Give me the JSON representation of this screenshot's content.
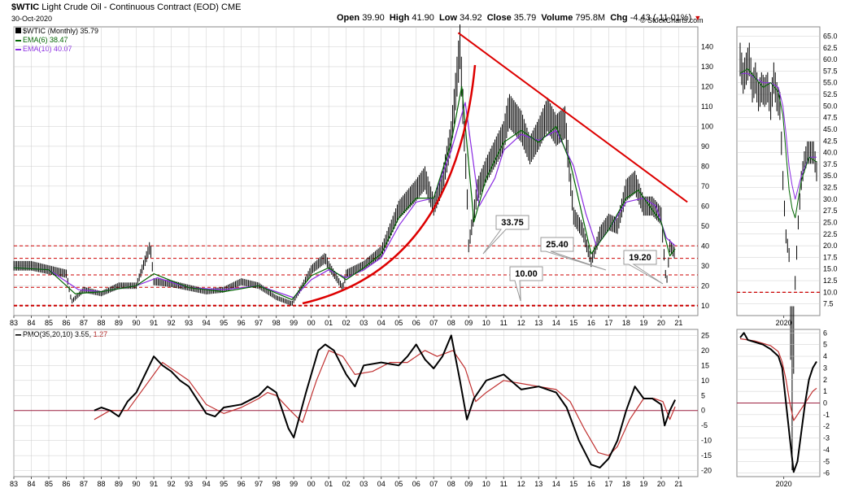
{
  "header": {
    "symbol": "$WTIC",
    "name": "Light Crude Oil - Continuous Contract (EOD)",
    "exchange": "CME",
    "date": "30-Oct-2020",
    "watermark": "© StockCharts.com",
    "ohlc": [
      {
        "label": "Open",
        "value": "39.90"
      },
      {
        "label": "High",
        "value": "41.90"
      },
      {
        "label": "Low",
        "value": "34.92"
      },
      {
        "label": "Close",
        "value": "35.79"
      },
      {
        "label": "Volume",
        "value": "795.8M"
      },
      {
        "label": "Chg",
        "value": "-4.43 (-11.01%)"
      }
    ],
    "legend": [
      {
        "text": "$WTIC (Monthly) 35.79",
        "color": "#000000"
      },
      {
        "text": "EMA(6) 38.47",
        "color": "#006400"
      },
      {
        "text": "EMA(10) 40.07",
        "color": "#8a2be2"
      }
    ],
    "pmo_label": "PMO(35,20,10)",
    "pmo_value": "3.55",
    "pmo_signal_value": "1.27",
    "pmo_signal_color": "#b22222"
  },
  "colors": {
    "price": "#000000",
    "ema6": "#006400",
    "ema10": "#8a2be2",
    "trend": "#dd0000",
    "support": "#cc0000",
    "grid": "#cccccc",
    "pmo": "#000000",
    "pmo_signal": "#c03030",
    "zero_line": "#9c2040"
  },
  "annotations": [
    "33.75",
    "25.40",
    "19.20",
    "10.00"
  ],
  "chart_data": [
    {
      "type": "line",
      "title": "$WTIC (Monthly)",
      "x_ticks": [
        "83",
        "84",
        "85",
        "86",
        "87",
        "88",
        "89",
        "90",
        "91",
        "92",
        "93",
        "94",
        "95",
        "96",
        "97",
        "98",
        "99",
        "00",
        "01",
        "02",
        "03",
        "04",
        "05",
        "06",
        "07",
        "08",
        "09",
        "10",
        "11",
        "12",
        "13",
        "14",
        "15",
        "16",
        "17",
        "18",
        "19",
        "20",
        "21"
      ],
      "y_ticks": [
        10,
        20,
        30,
        40,
        50,
        60,
        70,
        80,
        90,
        100,
        110,
        120,
        130,
        140
      ],
      "ylim": [
        5,
        150
      ],
      "series": [
        {
          "name": "$WTIC",
          "x": [
            1983,
            1984,
            1985,
            1986,
            1986.3,
            1987,
            1988,
            1989,
            1990,
            1990.8,
            1991,
            1992,
            1993,
            1994,
            1995,
            1996,
            1997,
            1998,
            1998.9,
            1999.5,
            2000,
            2000.8,
            2001,
            2001.8,
            2002,
            2003,
            2004,
            2005,
            2006,
            2006.5,
            2007,
            2007.5,
            2008,
            2008.5,
            2008.9,
            2009,
            2009.5,
            2010,
            2011,
            2011.3,
            2012,
            2012.5,
            2013,
            2013.5,
            2014,
            2014.5,
            2015,
            2015.5,
            2016,
            2016.5,
            2017,
            2017.5,
            2018,
            2018.5,
            2019,
            2019.5,
            2020,
            2020.3,
            2020.5,
            2020.8
          ],
          "values": [
            30,
            30,
            28,
            26,
            12,
            18,
            16,
            20,
            20,
            40,
            22,
            21,
            19,
            17,
            18,
            22,
            20,
            14,
            11,
            20,
            28,
            34,
            30,
            19,
            26,
            30,
            37,
            58,
            68,
            74,
            60,
            72,
            95,
            140,
            68,
            40,
            68,
            78,
            95,
            108,
            100,
            88,
            96,
            106,
            98,
            102,
            55,
            48,
            32,
            46,
            52,
            50,
            68,
            72,
            60,
            60,
            55,
            20,
            40,
            36
          ]
        },
        {
          "name": "EMA(6)",
          "x": [
            1983,
            1985,
            1986.5,
            1988,
            1990,
            1991,
            1993,
            1995,
            1997,
            1998.9,
            2000,
            2001,
            2002,
            2003,
            2004,
            2005,
            2006,
            2007,
            2008,
            2008.6,
            2009.3,
            2010,
            2011,
            2012,
            2013,
            2014,
            2014.8,
            2015.5,
            2016,
            2017,
            2018,
            2018.7,
            2019.5,
            2020,
            2020.5,
            2020.8
          ],
          "values": [
            29,
            28,
            16,
            17,
            20,
            26,
            19,
            17,
            20,
            13,
            25,
            29,
            23,
            29,
            36,
            54,
            64,
            64,
            92,
            120,
            52,
            74,
            92,
            98,
            92,
            100,
            82,
            55,
            36,
            48,
            64,
            68,
            58,
            52,
            35,
            38.47
          ]
        },
        {
          "name": "EMA(10)",
          "x": [
            1983,
            1985,
            1986.7,
            1988,
            1990,
            1991.2,
            1993,
            1995,
            1997,
            1999,
            2000,
            2001,
            2002,
            2003,
            2004,
            2005,
            2006,
            2007,
            2008,
            2008.8,
            2009.6,
            2010.5,
            2011,
            2012,
            2013,
            2014,
            2015,
            2015.7,
            2016.3,
            2017,
            2018,
            2019,
            2019.7,
            2020.3,
            2020.8
          ],
          "values": [
            29,
            28,
            18,
            17,
            20,
            24,
            19,
            18,
            20,
            14,
            23,
            28,
            24,
            28,
            34,
            50,
            62,
            64,
            88,
            112,
            60,
            74,
            88,
            96,
            93,
            98,
            80,
            56,
            40,
            48,
            62,
            64,
            60,
            44,
            40.07
          ]
        }
      ],
      "support_levels": [
        40,
        33.75,
        25.4,
        19.2,
        10.0
      ],
      "trend_line": {
        "x": [
          2008.4,
          2021.5
        ],
        "y": [
          147,
          62
        ]
      }
    },
    {
      "type": "line",
      "title": "$WTIC (Daily inset)",
      "x_ticks": [
        "2020"
      ],
      "y_ticks": [
        7.5,
        10.0,
        12.5,
        15.0,
        17.5,
        20.0,
        22.5,
        25.0,
        27.5,
        30.0,
        32.5,
        35.0,
        37.5,
        40.0,
        42.5,
        45.0,
        47.5,
        50.0,
        52.5,
        55.0,
        57.5,
        60.0,
        62.5,
        65.0
      ],
      "ylim": [
        5,
        67
      ],
      "series": [
        {
          "name": "$WTIC",
          "x": [
            0,
            4,
            8,
            12,
            16,
            20,
            24,
            28,
            32,
            36,
            40,
            44,
            48,
            52,
            56,
            60,
            64,
            68,
            72,
            76,
            80,
            84,
            88,
            92,
            96,
            100
          ],
          "values": [
            60,
            56,
            58,
            60,
            54,
            56,
            52,
            54,
            53,
            54,
            50,
            56,
            52,
            50,
            34,
            22,
            18,
            -30,
            12,
            25,
            34,
            38,
            40,
            40,
            40,
            36
          ]
        },
        {
          "name": "EMA(6)",
          "x": [
            0,
            10,
            20,
            30,
            40,
            50,
            56,
            60,
            64,
            68,
            72,
            80,
            90,
            100
          ],
          "values": [
            57,
            58,
            56,
            54,
            55,
            53,
            48,
            40,
            32,
            28,
            26,
            34,
            39,
            38
          ]
        },
        {
          "name": "EMA(10)",
          "x": [
            0,
            10,
            20,
            30,
            40,
            50,
            56,
            60,
            64,
            68,
            72,
            80,
            90,
            100
          ],
          "values": [
            57,
            57,
            56,
            55,
            55,
            54,
            50,
            44,
            37,
            33,
            30,
            35,
            39,
            39
          ]
        }
      ]
    },
    {
      "type": "line",
      "title": "PMO(35,20,10)",
      "x_ticks": [
        "83",
        "84",
        "85",
        "86",
        "87",
        "88",
        "89",
        "90",
        "91",
        "92",
        "93",
        "94",
        "95",
        "96",
        "97",
        "98",
        "99",
        "00",
        "01",
        "02",
        "03",
        "04",
        "05",
        "06",
        "07",
        "08",
        "09",
        "10",
        "11",
        "12",
        "13",
        "14",
        "15",
        "16",
        "17",
        "18",
        "19",
        "20",
        "21"
      ],
      "y_ticks": [
        -20,
        -15,
        -10,
        -5,
        0,
        5,
        10,
        15,
        20,
        25
      ],
      "ylim": [
        -22,
        27
      ],
      "series": [
        {
          "name": "PMO",
          "x": [
            1987.6,
            1988,
            1988.5,
            1989,
            1989.5,
            1990,
            1990.5,
            1991,
            1991.5,
            1992,
            1992.5,
            1993,
            1994,
            1994.5,
            1995,
            1996,
            1997,
            1997.5,
            1998,
            1998.7,
            1999,
            1999.7,
            2000.4,
            2000.8,
            2001.3,
            2002,
            2002.5,
            2003,
            2004,
            2005,
            2005.5,
            2006,
            2006.5,
            2007,
            2007.5,
            2008,
            2008.5,
            2008.9,
            2009.3,
            2010,
            2011,
            2012,
            2013,
            2014,
            2014.6,
            2015.3,
            2016,
            2016.5,
            2017,
            2017.5,
            2018,
            2018.5,
            2019,
            2019.5,
            2020,
            2020.2,
            2020.5,
            2020.8
          ],
          "values": [
            0,
            1,
            0,
            -2,
            3,
            6,
            12,
            18,
            15,
            13,
            10,
            8,
            -1,
            -2,
            1,
            2,
            5,
            8,
            6,
            -6,
            -9,
            6,
            20,
            22,
            20,
            12,
            8,
            15,
            16,
            15,
            18,
            22,
            17,
            14,
            18,
            25,
            10,
            -3,
            4,
            10,
            12,
            7,
            8,
            6,
            1,
            -10,
            -18,
            -19,
            -16,
            -10,
            0,
            8,
            4,
            4,
            2,
            -5,
            0,
            3.55
          ]
        },
        {
          "name": "Signal",
          "x": [
            1987.6,
            1988.5,
            1989.5,
            1990.5,
            1991.5,
            1992.5,
            1993,
            1994,
            1995,
            1996,
            1997,
            1997.5,
            1998,
            1998.8,
            1999.5,
            2000.3,
            2001,
            2001.8,
            2002.5,
            2003.5,
            2004.5,
            2005.5,
            2006.5,
            2007.2,
            2008.1,
            2008.8,
            2009.4,
            2010,
            2011,
            2012,
            2013,
            2014,
            2014.8,
            2015.6,
            2016.4,
            2017,
            2017.5,
            2018.2,
            2019,
            2019.6,
            2020.1,
            2020.5,
            2020.8
          ],
          "values": [
            -3,
            0,
            0,
            8,
            16,
            12,
            10,
            2,
            -1,
            1,
            4,
            6,
            5,
            0,
            -4,
            10,
            20,
            18,
            12,
            13,
            16,
            16,
            20,
            18,
            20,
            14,
            3,
            6,
            10,
            9,
            8,
            7,
            3,
            -6,
            -14,
            -15,
            -12,
            -3,
            4,
            4,
            3,
            -3,
            1.27
          ]
        }
      ]
    },
    {
      "type": "line",
      "title": "PMO (Daily inset)",
      "x_ticks": [
        "2020"
      ],
      "y_ticks": [
        -6,
        -5,
        -4,
        -3,
        -2,
        -1,
        0,
        1,
        2,
        3,
        4,
        5,
        6
      ],
      "ylim": [
        -6.3,
        6.3
      ],
      "series": [
        {
          "name": "PMO",
          "x": [
            0,
            5,
            10,
            20,
            30,
            40,
            50,
            55,
            60,
            65,
            70,
            75,
            80,
            85,
            90,
            95,
            100
          ],
          "values": [
            5.6,
            6,
            5.4,
            5.2,
            5,
            4.6,
            4,
            3,
            0,
            -3,
            -5.9,
            -5,
            -2.5,
            0,
            2,
            3,
            3.55
          ]
        },
        {
          "name": "Signal",
          "x": [
            0,
            10,
            20,
            30,
            40,
            50,
            55,
            60,
            65,
            70,
            75,
            80,
            85,
            90,
            95,
            100
          ],
          "values": [
            5.5,
            5.4,
            5.3,
            5.1,
            4.9,
            4.4,
            3.5,
            2,
            0,
            -1.5,
            -1,
            -0.5,
            0,
            0.5,
            1,
            1.27
          ]
        }
      ]
    }
  ]
}
